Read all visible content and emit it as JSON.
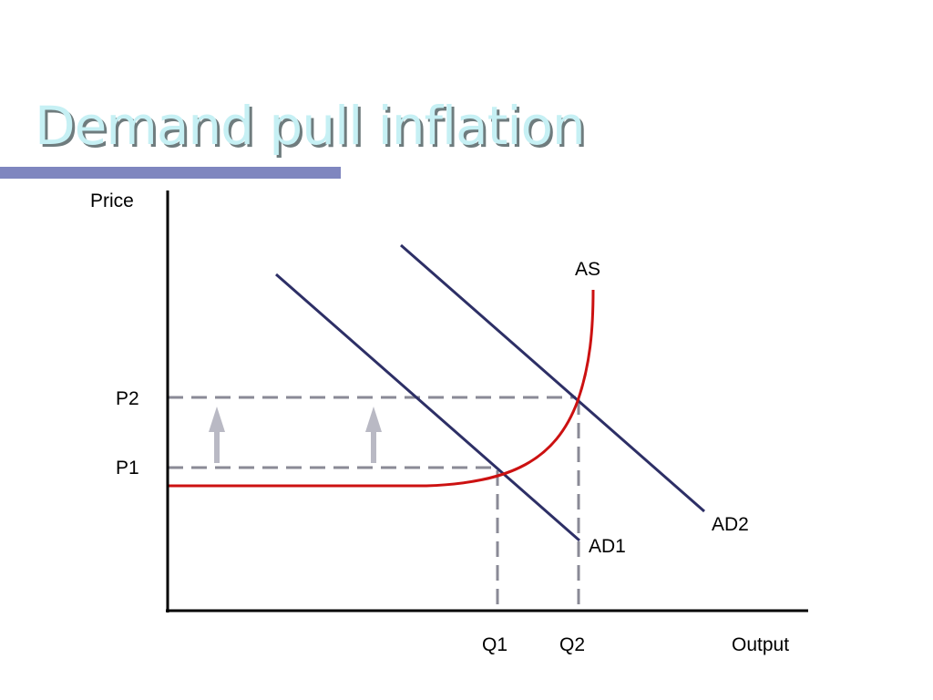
{
  "slide": {
    "title": "Demand pull inflation"
  },
  "diagram": {
    "y_axis_label": "Price",
    "x_axis_label": "Output",
    "price_levels": [
      "P2",
      "P1"
    ],
    "output_levels": [
      "Q1",
      "Q2"
    ],
    "curves": {
      "aggregate_supply": "AS",
      "initial_demand": "AD1",
      "shifted_demand": "AD2"
    },
    "colors": {
      "aggregate_supply": "#cc1111",
      "aggregate_demand": "#2d2f66",
      "guide_lines": "#8a8a96",
      "arrows": "#b9b9c4",
      "axes": "#000000"
    }
  }
}
